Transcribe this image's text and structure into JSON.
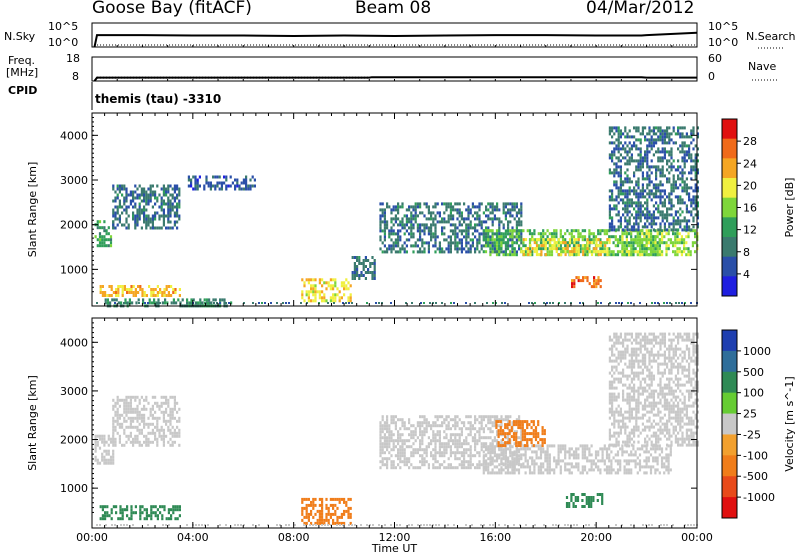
{
  "header": {
    "station": "Goose Bay (fitACF)",
    "beam": "Beam 08",
    "date": "04/Mar/2012"
  },
  "summary_panel": {
    "nsky_label": "N.Sky",
    "nsearch_label": "N.Search",
    "noise_ticks": [
      "10^5",
      "10^0"
    ],
    "freq_label_1": "Freq.",
    "freq_label_2": "[MHz]",
    "freq_ticks": [
      "18",
      "8"
    ],
    "nave_label": "Nave",
    "nave_ticks": [
      "60",
      "0"
    ],
    "cpid_label": "CPID",
    "cpid_value": "themis (tau) -3310"
  },
  "colors": {
    "power_scale": [
      "#1f1fe0",
      "#2a4fa8",
      "#3a7a6e",
      "#2f9e5a",
      "#7ed63a",
      "#f0f040",
      "#f5a623",
      "#f06a1a",
      "#e01010"
    ],
    "velocity_scale": [
      "#1f3fb0",
      "#2f6e9a",
      "#2f8a55",
      "#66cc33",
      "#c8c8c8",
      "#f2a02e",
      "#f07d1a",
      "#e84a1a",
      "#e01010"
    ]
  },
  "chart_data": [
    {
      "type": "line",
      "title": "",
      "xlabel": "",
      "ylabel": "N.Sky",
      "x_range": [
        "00:00",
        "24:00"
      ],
      "series": [
        {
          "name": "N.Sky",
          "x": [
            0.1,
            0.2,
            2,
            4,
            6,
            8,
            10,
            12,
            14,
            16,
            18,
            20,
            21.8,
            22,
            24
          ],
          "y": [
            1,
            300,
            300,
            250,
            250,
            200,
            250,
            200,
            250,
            300,
            300,
            250,
            250,
            300,
            900
          ]
        }
      ]
    },
    {
      "type": "line",
      "title": "",
      "xlabel": "",
      "ylabel": "Freq. [MHz]",
      "x_range": [
        "00:00",
        "24:00"
      ],
      "series": [
        {
          "name": "Freq.",
          "x": [
            0.1,
            0.2,
            11,
            11.1,
            21.8,
            22,
            24
          ],
          "y": [
            8,
            9.4,
            9.4,
            9.6,
            9.6,
            9.4,
            9.4
          ]
        }
      ]
    },
    {
      "type": "heatmap",
      "title": "",
      "xlabel": "Time UT",
      "ylabel": "Slant Range [km]",
      "x_ticks": [
        "00:00",
        "04:00",
        "08:00",
        "12:00",
        "16:00",
        "20:00",
        "00:00"
      ],
      "y_ticks": [
        "1000",
        "2000",
        "3000",
        "4000"
      ],
      "ylim": [
        180,
        4500
      ],
      "colorbar": {
        "label": "Power [dB]",
        "ticks": [
          "4",
          "8",
          "12",
          "16",
          "20",
          "24",
          "28"
        ]
      },
      "regions": [
        {
          "t0": 0.1,
          "t1": 0.8,
          "r0": 1500,
          "r1": 2100,
          "value": 12
        },
        {
          "t0": 0.8,
          "t1": 3.5,
          "r0": 1900,
          "r1": 2900,
          "value": 8
        },
        {
          "t0": 3.8,
          "t1": 6.5,
          "r0": 2800,
          "r1": 3100,
          "value": 6
        },
        {
          "t0": 0.3,
          "t1": 3.5,
          "r0": 400,
          "r1": 650,
          "value": 22
        },
        {
          "t0": 0.5,
          "t1": 5.5,
          "r0": 180,
          "r1": 350,
          "value": 10
        },
        {
          "t0": 8.3,
          "t1": 10.3,
          "r0": 300,
          "r1": 800,
          "value": 20
        },
        {
          "t0": 10.3,
          "t1": 11.2,
          "r0": 800,
          "r1": 1300,
          "value": 8
        },
        {
          "t0": 11.4,
          "t1": 17,
          "r0": 1400,
          "r1": 2500,
          "value": 8
        },
        {
          "t0": 15.5,
          "t1": 22.5,
          "r0": 1300,
          "r1": 1900,
          "value": 14
        },
        {
          "t0": 17,
          "t1": 20.5,
          "r0": 1300,
          "r1": 1700,
          "value": 20
        },
        {
          "t0": 19,
          "t1": 20.2,
          "r0": 600,
          "r1": 850,
          "value": 26
        },
        {
          "t0": 21,
          "t1": 24,
          "r0": 1300,
          "r1": 1900,
          "value": 16
        },
        {
          "t0": 20.5,
          "t1": 24,
          "r0": 1900,
          "r1": 4200,
          "value": 8
        }
      ]
    },
    {
      "type": "heatmap",
      "title": "",
      "xlabel": "Time UT",
      "ylabel": "Slant Range [km]",
      "x_ticks": [
        "00:00",
        "04:00",
        "08:00",
        "12:00",
        "16:00",
        "20:00",
        "00:00"
      ],
      "y_ticks": [
        "1000",
        "2000",
        "3000",
        "4000"
      ],
      "ylim": [
        180,
        4500
      ],
      "colorbar": {
        "label": "Velocity [m s^-1]",
        "ticks": [
          "1000",
          "500",
          "100",
          "25",
          "-25",
          "-100",
          "-500",
          "-1000"
        ]
      },
      "regions": [
        {
          "t0": 0.1,
          "t1": 0.8,
          "r0": 1500,
          "r1": 2100,
          "value": 0
        },
        {
          "t0": 0.8,
          "t1": 3.5,
          "r0": 1900,
          "r1": 2900,
          "value": 0
        },
        {
          "t0": 0.3,
          "t1": 3.5,
          "r0": 400,
          "r1": 650,
          "value": 150
        },
        {
          "t0": 8.3,
          "t1": 10.3,
          "r0": 300,
          "r1": 800,
          "value": -150
        },
        {
          "t0": 11.4,
          "t1": 17,
          "r0": 1400,
          "r1": 2500,
          "value": 0
        },
        {
          "t0": 15.5,
          "t1": 23,
          "r0": 1300,
          "r1": 1900,
          "value": 0
        },
        {
          "t0": 16,
          "t1": 18,
          "r0": 1900,
          "r1": 2400,
          "value": -150
        },
        {
          "t0": 18.8,
          "t1": 20.2,
          "r0": 650,
          "r1": 900,
          "value": 150
        },
        {
          "t0": 20.5,
          "t1": 24,
          "r0": 1900,
          "r1": 4200,
          "value": 0
        }
      ]
    }
  ]
}
